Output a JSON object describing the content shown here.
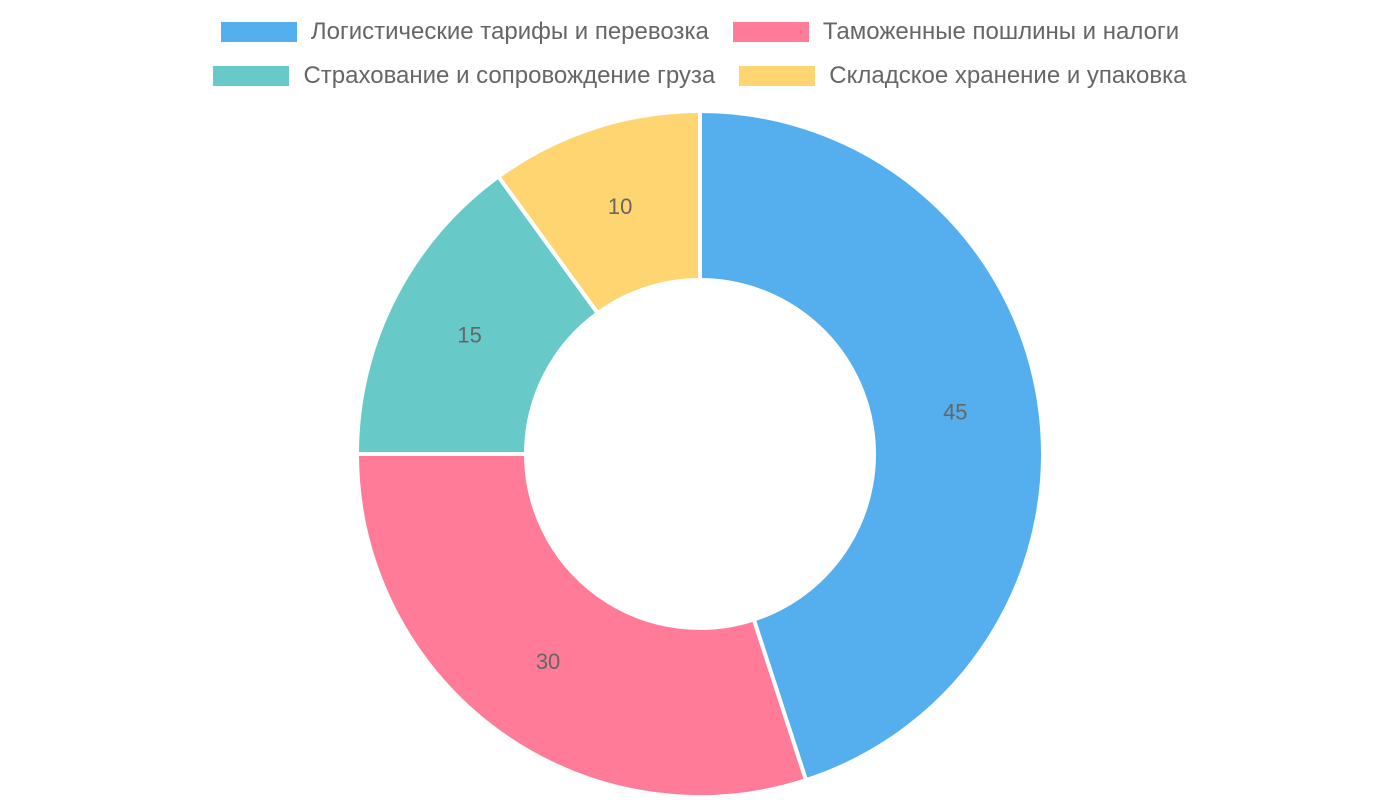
{
  "chart_data": {
    "type": "pie",
    "donut": true,
    "categories": [
      "Логистические тарифы и перевозка",
      "Таможенные пошлины и налоги",
      "Страхование и сопровождение груза",
      "Складское хранение и упаковка"
    ],
    "values": [
      45,
      30,
      15,
      10
    ],
    "value_labels": [
      "45",
      "30",
      "15",
      "10"
    ],
    "colors": [
      "#55AFEF",
      "#FF7B97",
      "#68C9C9",
      "#FFD572"
    ],
    "legend_placement": "top",
    "title": ""
  }
}
